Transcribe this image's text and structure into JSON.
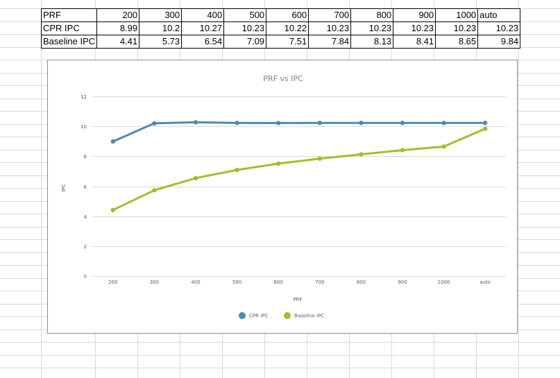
{
  "table": {
    "rows": [
      {
        "label": "PRF",
        "cells": [
          "200",
          "300",
          "400",
          "500",
          "600",
          "700",
          "800",
          "900",
          "1000",
          "auto"
        ]
      },
      {
        "label": "CPR IPC",
        "cells": [
          "8.99",
          "10.2",
          "10.27",
          "10.23",
          "10.22",
          "10.23",
          "10.23",
          "10.23",
          "10.23",
          "10.23"
        ]
      },
      {
        "label": "Baseline IPC",
        "cells": [
          "4.41",
          "5.73",
          "6.54",
          "7.09",
          "7.51",
          "7.84",
          "8.13",
          "8.41",
          "8.65",
          "9.84"
        ]
      }
    ]
  },
  "chart_data": {
    "type": "line",
    "title": "PRF vs IPC",
    "xlabel": "PRF",
    "ylabel": "IPC",
    "categories": [
      "200",
      "300",
      "400",
      "500",
      "600",
      "700",
      "800",
      "900",
      "1000",
      "auto"
    ],
    "ylim": [
      0,
      12
    ],
    "yticks": [
      "0",
      "2",
      "4",
      "6",
      "8",
      "10",
      "12"
    ],
    "grid": true,
    "legend_position": "bottom",
    "series": [
      {
        "name": "CPR IPC",
        "color": "#4a8ab8",
        "values": [
          8.99,
          10.2,
          10.27,
          10.23,
          10.22,
          10.23,
          10.23,
          10.23,
          10.23,
          10.23
        ]
      },
      {
        "name": "Baseline IPC",
        "color": "#a6bc2b",
        "values": [
          4.41,
          5.73,
          6.54,
          7.09,
          7.51,
          7.84,
          8.13,
          8.41,
          8.65,
          9.84
        ]
      }
    ]
  }
}
